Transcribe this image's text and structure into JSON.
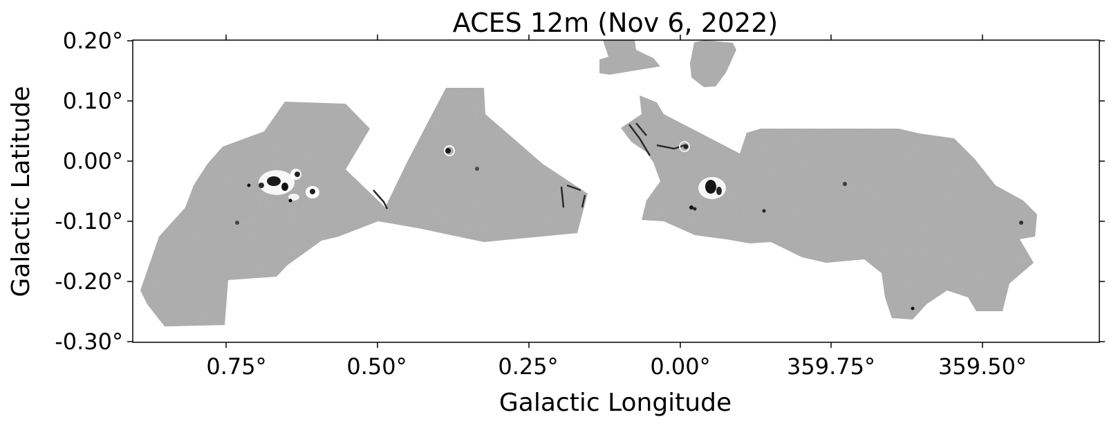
{
  "figure": {
    "title": "ACES 12m (Nov 6, 2022)",
    "xlabel": "Galactic Longitude",
    "ylabel": "Galactic Latitude"
  },
  "axes": {
    "x_ticks": [
      "0.75°",
      "0.50°",
      "0.25°",
      "0.00°",
      "359.75°",
      "359.50°"
    ],
    "y_ticks": [
      "0.20°",
      "0.10°",
      "0.00°",
      "-0.10°",
      "-0.20°",
      "-0.30°"
    ],
    "x_range_deg": [
      0.905,
      359.33
    ],
    "y_range_deg": [
      -0.3,
      0.2
    ]
  },
  "image": {
    "type": "grayscale mosaic map",
    "colormap": "gray",
    "background_color": "#ffffff",
    "field_color": "#b9b9b9"
  }
}
